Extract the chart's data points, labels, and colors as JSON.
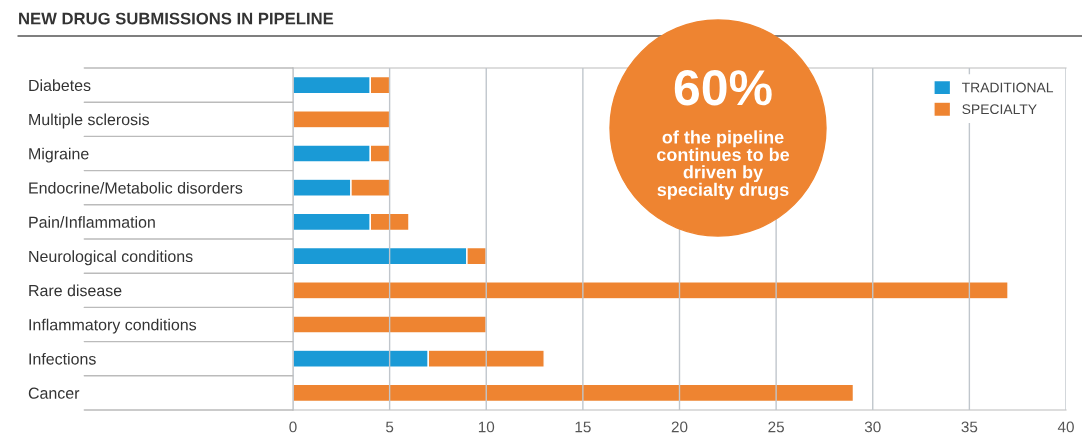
{
  "chart_data": {
    "type": "bar",
    "orientation": "horizontal",
    "stacked": true,
    "title": "NEW DRUG SUBMISSIONS IN PIPELINE",
    "categories": [
      "Diabetes",
      "Multiple sclerosis",
      "Migraine",
      "Endocrine/Metabolic disorders",
      "Pain/Inflammation",
      "Neurological conditions",
      "Rare disease",
      "Inflammatory conditions",
      "Infections",
      "Cancer"
    ],
    "series": [
      {
        "name": "TRADITIONAL",
        "color": "#1a9ad6",
        "values": [
          4,
          0,
          4,
          3,
          4,
          9,
          0,
          0,
          7,
          0
        ]
      },
      {
        "name": "SPECIALTY",
        "color": "#ee8431",
        "values": [
          1,
          5,
          1,
          2,
          2,
          1,
          37,
          10,
          6,
          29
        ]
      }
    ],
    "xlim": [
      0,
      40
    ],
    "xticks": [
      0,
      5,
      10,
      15,
      20,
      25,
      30,
      35,
      40
    ],
    "grid": "x",
    "legend": "top right",
    "annotations": [
      "60%",
      "of the pipeline continues to be driven by specialty drugs"
    ]
  }
}
